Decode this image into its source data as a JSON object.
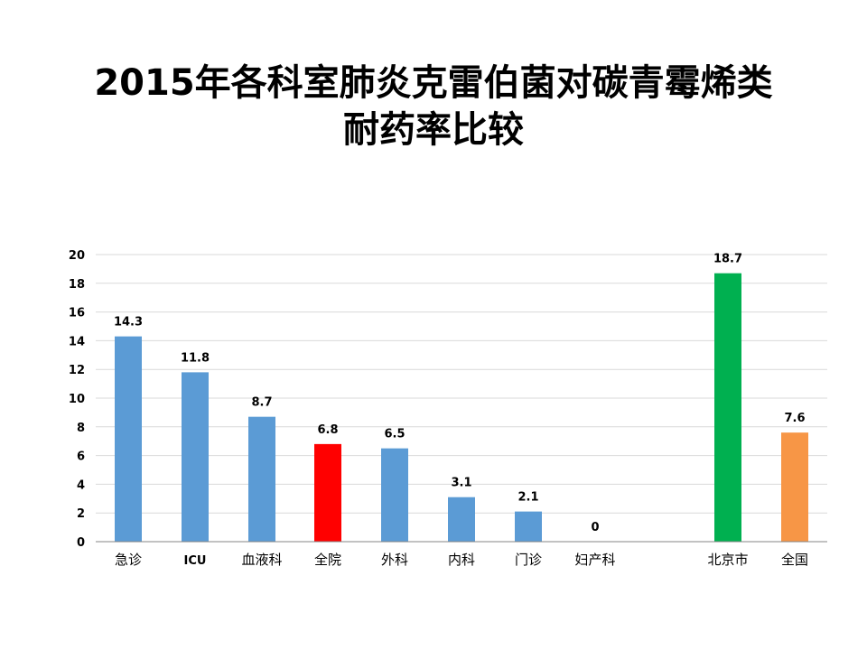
{
  "slide": {
    "title_line1": "2015年各科室肺炎克雷伯菌对碳青霉烯类",
    "title_line2": "耐药率比较"
  },
  "chart_data": {
    "type": "bar",
    "title": "2015年各科室肺炎克雷伯菌对碳青霉烯类耐药率比较",
    "xlabel": "",
    "ylabel": "",
    "ylim": [
      0,
      20
    ],
    "yticks": [
      0,
      2,
      4,
      6,
      8,
      10,
      12,
      14,
      16,
      18,
      20
    ],
    "grid": true,
    "legend": "none",
    "categories": [
      "急诊",
      "ICU",
      "血液科",
      "全院",
      "外科",
      "内科",
      "门诊",
      "妇产科",
      "北京市",
      "全国"
    ],
    "values": [
      14.3,
      11.8,
      8.7,
      6.8,
      6.5,
      3.1,
      2.1,
      0,
      18.7,
      7.6
    ],
    "data_labels": [
      "14.3",
      "11.8",
      "8.7",
      "6.8",
      "6.5",
      "3.1",
      "2.1",
      "0",
      "18.7",
      "7.6"
    ],
    "colors": [
      "#5b9bd5",
      "#5b9bd5",
      "#5b9bd5",
      "#ff0000",
      "#5b9bd5",
      "#5b9bd5",
      "#5b9bd5",
      "#5b9bd5",
      "#00b050",
      "#f79646"
    ],
    "grid_color": "#d9d9d9",
    "axis_color": "#868686"
  }
}
